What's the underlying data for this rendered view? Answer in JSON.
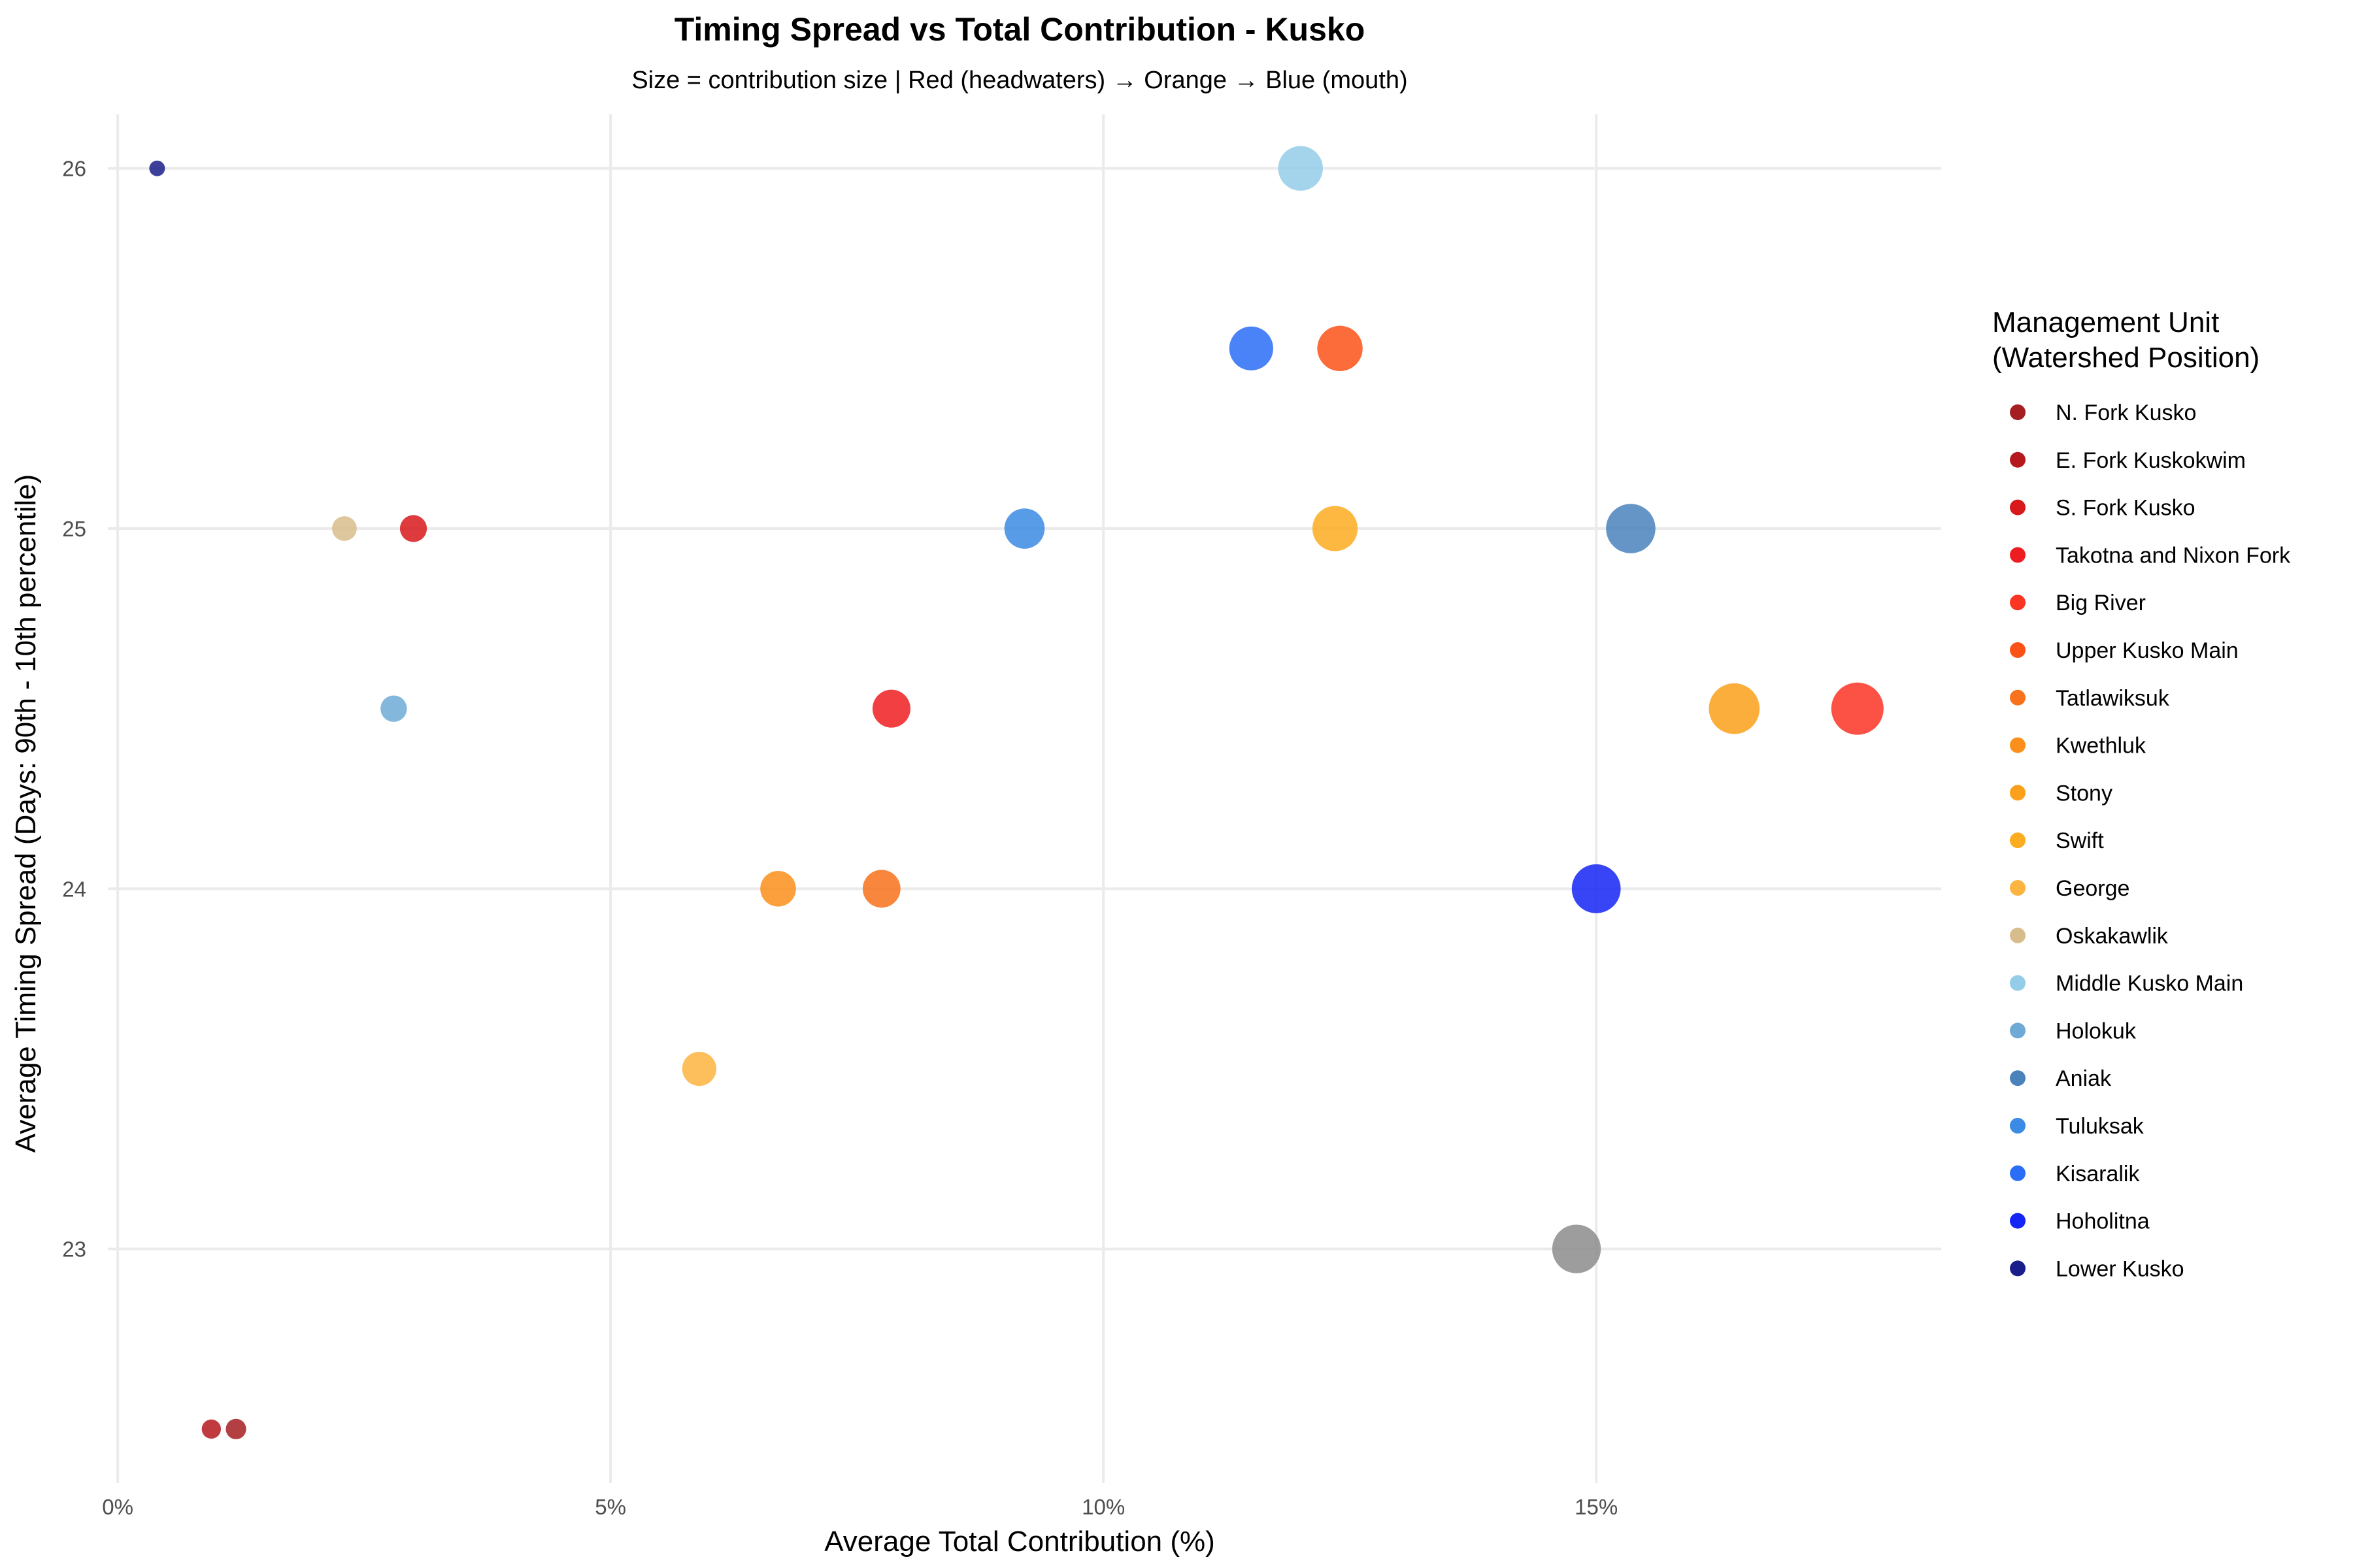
{
  "chart_data": {
    "type": "scatter",
    "title": "Timing Spread vs Total Contribution - Kusko",
    "subtitle": "Size = contribution size | Red (headwaters) → Orange → Blue (mouth)",
    "xlabel": "Average Total Contribution (%)",
    "ylabel": "Average Timing Spread (Days: 90th - 10th percentile)",
    "xlim": [
      -0.1,
      18.5
    ],
    "ylim": [
      22.35,
      26.15
    ],
    "x_ticks": [
      0,
      5,
      10,
      15
    ],
    "x_tick_labels": [
      "0%",
      "5%",
      "10%",
      "15%"
    ],
    "y_ticks": [
      23,
      24,
      25,
      26
    ],
    "y_tick_labels": [
      "23",
      "24",
      "25",
      "26"
    ],
    "grid": true,
    "legend_position": "right",
    "legend_title": [
      "Management Unit",
      "(Watershed Position)"
    ],
    "legend": [
      {
        "name": "N. Fork Kusko",
        "color": "#A41E22"
      },
      {
        "name": "E. Fork Kuskokwim",
        "color": "#B5191D"
      },
      {
        "name": "S. Fork Kusko",
        "color": "#D7191C"
      },
      {
        "name": "Takotna and Nixon Fork",
        "color": "#EE1D21"
      },
      {
        "name": "Big River",
        "color": "#FB3424"
      },
      {
        "name": "Upper Kusko Main",
        "color": "#FB5218"
      },
      {
        "name": "Tatlawiksuk",
        "color": "#F8711B"
      },
      {
        "name": "Kwethluk",
        "color": "#FB8F1C"
      },
      {
        "name": "Stony",
        "color": "#FBA01B"
      },
      {
        "name": "Swift",
        "color": "#FBAC20"
      },
      {
        "name": "George",
        "color": "#FBB440"
      },
      {
        "name": "Oskakawlik",
        "color": "#D8BD8C"
      },
      {
        "name": "Middle Kusko Main",
        "color": "#93CDE8"
      },
      {
        "name": "Holokuk",
        "color": "#6FAAD6"
      },
      {
        "name": "Aniak",
        "color": "#4A82BC"
      },
      {
        "name": "Tuluksak",
        "color": "#3B8AE3"
      },
      {
        "name": "Kisaralik",
        "color": "#2A6DF6"
      },
      {
        "name": "Hoholitna",
        "color": "#1525F6"
      },
      {
        "name": "Lower Kusko",
        "color": "#1A1E8A"
      }
    ],
    "points": [
      {
        "x": 0.4,
        "y": 26.0,
        "size": 0.4,
        "color": "#1A1E8A"
      },
      {
        "x": 0.95,
        "y": 22.5,
        "size": 0.95,
        "color": "#B5191D"
      },
      {
        "x": 1.2,
        "y": 22.5,
        "size": 1.2,
        "color": "#A41E22"
      },
      {
        "x": 2.3,
        "y": 25.0,
        "size": 2.3,
        "color": "#D8BD8C"
      },
      {
        "x": 3.0,
        "y": 25.0,
        "size": 3.0,
        "color": "#D7191C"
      },
      {
        "x": 2.8,
        "y": 24.5,
        "size": 2.8,
        "color": "#6FAAD6"
      },
      {
        "x": 7.85,
        "y": 24.5,
        "size": 7.85,
        "color": "#EE1D21"
      },
      {
        "x": 6.7,
        "y": 24.0,
        "size": 6.7,
        "color": "#FB8F1C"
      },
      {
        "x": 7.75,
        "y": 24.0,
        "size": 7.75,
        "color": "#F8711B"
      },
      {
        "x": 5.9,
        "y": 23.5,
        "size": 5.9,
        "color": "#FBB440"
      },
      {
        "x": 9.2,
        "y": 25.0,
        "size": 9.2,
        "color": "#3B8AE3"
      },
      {
        "x": 11.5,
        "y": 25.5,
        "size": 11.5,
        "color": "#2A6DF6"
      },
      {
        "x": 12.0,
        "y": 26.0,
        "size": 12.0,
        "color": "#93CDE8"
      },
      {
        "x": 12.4,
        "y": 25.5,
        "size": 12.4,
        "color": "#FB5218"
      },
      {
        "x": 12.35,
        "y": 25.0,
        "size": 12.35,
        "color": "#FBAC20"
      },
      {
        "x": 15.35,
        "y": 25.0,
        "size": 15.35,
        "color": "#4A82BC"
      },
      {
        "x": 15.0,
        "y": 24.0,
        "size": 15.0,
        "color": "#1525F6"
      },
      {
        "x": 14.8,
        "y": 23.0,
        "size": 14.8,
        "color": "#8C8C8C"
      },
      {
        "x": 16.4,
        "y": 24.5,
        "size": 16.4,
        "color": "#FBA01B"
      },
      {
        "x": 17.65,
        "y": 24.5,
        "size": 17.65,
        "color": "#FB3424"
      }
    ]
  }
}
